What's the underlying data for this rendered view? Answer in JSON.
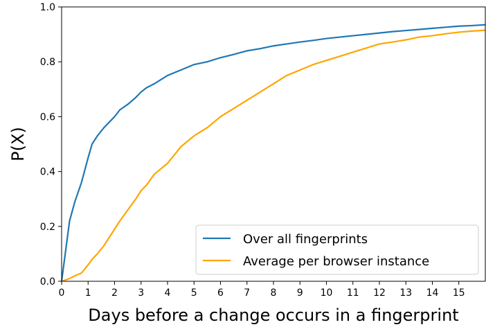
{
  "chart_data": {
    "type": "line",
    "xlabel": "Days before a change occurs in a fingerprint",
    "ylabel": "P(X)",
    "x": [
      0,
      0.3,
      0.5,
      0.75,
      1,
      1.15,
      1.35,
      1.6,
      1.8,
      2,
      2.2,
      2.5,
      2.8,
      3,
      3.2,
      3.5,
      4,
      4.5,
      5,
      5.5,
      6,
      6.5,
      7,
      7.5,
      8,
      8.5,
      9,
      9.5,
      10,
      10.5,
      11,
      11.5,
      12,
      12.5,
      13,
      13.5,
      14,
      14.5,
      15,
      15.5,
      16
    ],
    "series": [
      {
        "name": "Over all fingerprints",
        "color": "#1f77b4",
        "values": [
          0,
          0.22,
          0.29,
          0.36,
          0.45,
          0.5,
          0.53,
          0.56,
          0.58,
          0.6,
          0.625,
          0.645,
          0.67,
          0.69,
          0.705,
          0.72,
          0.75,
          0.77,
          0.79,
          0.8,
          0.815,
          0.827,
          0.84,
          0.848,
          0.858,
          0.865,
          0.872,
          0.878,
          0.885,
          0.89,
          0.895,
          0.9,
          0.905,
          0.91,
          0.914,
          0.918,
          0.922,
          0.926,
          0.93,
          0.932,
          0.935
        ]
      },
      {
        "name": "Average per browser instance",
        "color": "#ffa500",
        "values": [
          0,
          0.01,
          0.02,
          0.03,
          0.06,
          0.08,
          0.1,
          0.13,
          0.16,
          0.19,
          0.22,
          0.26,
          0.3,
          0.33,
          0.35,
          0.39,
          0.43,
          0.49,
          0.53,
          0.56,
          0.6,
          0.63,
          0.66,
          0.69,
          0.72,
          0.75,
          0.77,
          0.79,
          0.805,
          0.82,
          0.835,
          0.85,
          0.865,
          0.872,
          0.88,
          0.89,
          0.895,
          0.902,
          0.908,
          0.912,
          0.915
        ]
      }
    ],
    "xlim": [
      0,
      16
    ],
    "xticks": [
      0,
      1,
      2,
      3,
      4,
      5,
      6,
      7,
      8,
      9,
      10,
      11,
      12,
      13,
      14,
      15
    ],
    "ylim": [
      0,
      1
    ],
    "yticks": [
      {
        "value": 0,
        "label": "0.0"
      },
      0.2,
      0.4,
      0.6,
      0.8,
      {
        "value": 1,
        "label": "1.0"
      }
    ],
    "grid": false,
    "legend": "lower right"
  }
}
